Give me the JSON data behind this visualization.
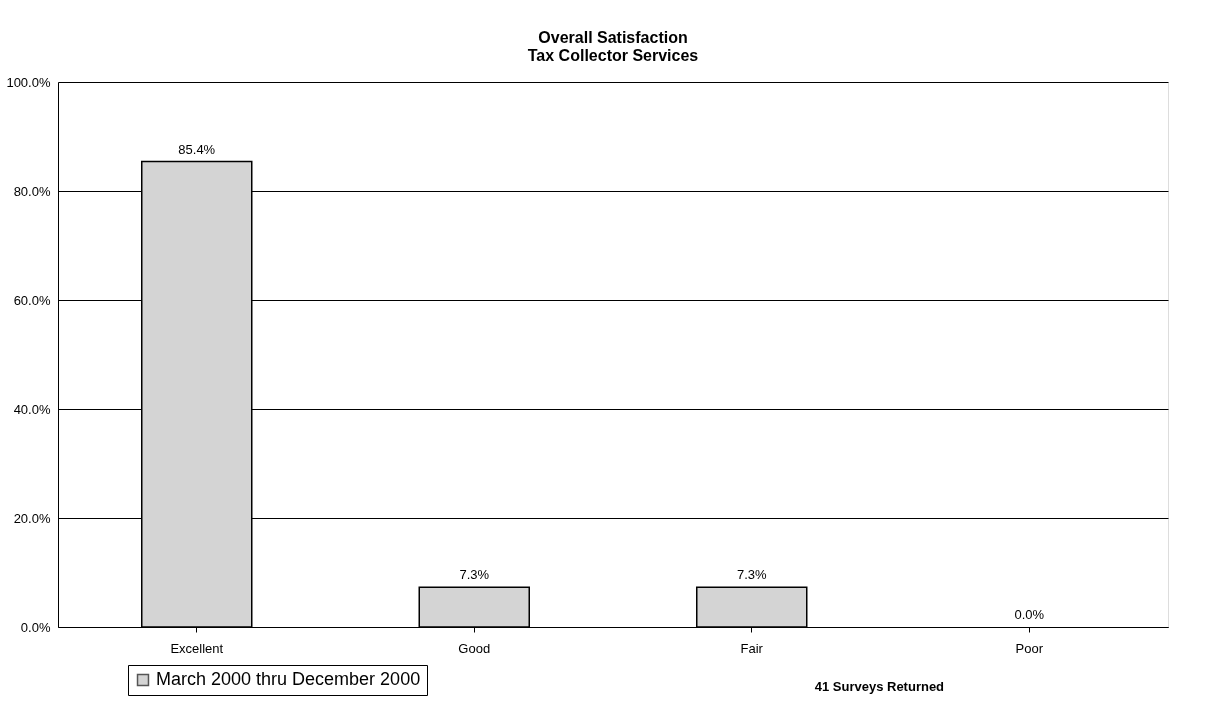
{
  "chart_data": {
    "type": "bar",
    "title": [
      "Overall Satisfaction",
      "Tax Collector Services"
    ],
    "categories": [
      "Excellent",
      "Good",
      "Fair",
      "Poor"
    ],
    "series": [
      {
        "name": "March 2000 thru December 2000",
        "color": "#d4d4d4",
        "values": [
          85.4,
          7.3,
          7.3,
          0.0
        ],
        "value_labels": [
          "85.4%",
          "7.3%",
          "7.3%",
          "0.0%"
        ]
      }
    ],
    "ylim": [
      0,
      100
    ],
    "yticks": [
      {
        "value": 0,
        "label": "0.0%"
      },
      {
        "value": 20,
        "label": "20.0%"
      },
      {
        "value": 40,
        "label": "40.0%"
      },
      {
        "value": 60,
        "label": "60.0%"
      },
      {
        "value": 80,
        "label": "80.0%"
      },
      {
        "value": 100,
        "label": "100.0%"
      }
    ],
    "grid": "y",
    "legend": "bottom left",
    "annotations": [
      "41 Surveys Returned"
    ]
  }
}
